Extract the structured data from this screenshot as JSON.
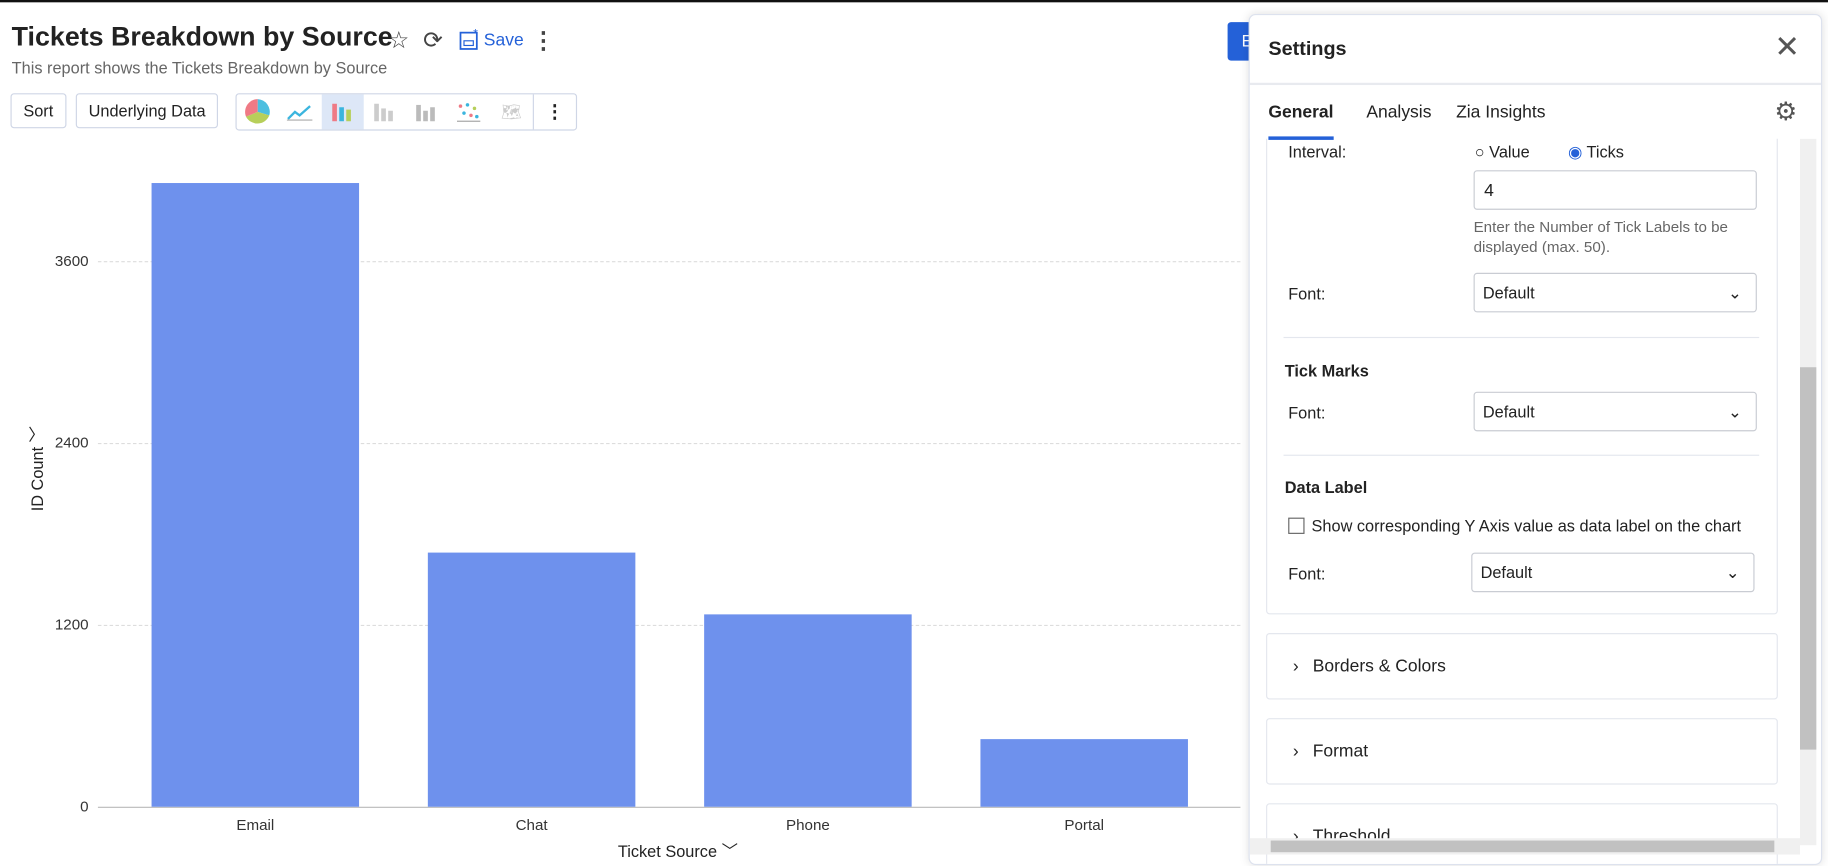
{
  "header": {
    "title": "Tickets Breakdown by Source",
    "subtitle": "This report shows the Tickets Breakdown by Source",
    "save_label": "Save",
    "partial_button": "E"
  },
  "toolbar": {
    "sort": "Sort",
    "underlying": "Underlying Data",
    "chart_types": [
      "pie",
      "line",
      "bar",
      "stacked-bar",
      "waterfall",
      "scatter",
      "map"
    ],
    "selected": "bar"
  },
  "chart_data": {
    "type": "bar",
    "categories": [
      "Email",
      "Chat",
      "Phone",
      "Portal"
    ],
    "values": [
      4115,
      1677,
      1269,
      446
    ],
    "xlabel": "Ticket Source",
    "ylabel": "ID Count",
    "yticks": [
      "0",
      "1200",
      "2400",
      "3600"
    ],
    "ylim": [
      0,
      4500
    ],
    "grid": true,
    "color": "#6e91ed"
  },
  "settings": {
    "title": "Settings",
    "tabs": [
      "General",
      "Analysis",
      "Zia Insights"
    ],
    "active_tab": "General",
    "interval": {
      "label": "Interval:",
      "options": [
        "Value",
        "Ticks"
      ],
      "selected": "Ticks",
      "value": "4",
      "help": "Enter the Number of Tick Labels to be displayed (max. 50)."
    },
    "font_label": "Font:",
    "font_value": "Default",
    "tick_marks": "Tick Marks",
    "data_label": "Data Label",
    "data_label_checkbox": "Show corresponding Y Axis value as data label on the chart",
    "accordions": [
      "Borders & Colors",
      "Format",
      "Threshold"
    ]
  }
}
